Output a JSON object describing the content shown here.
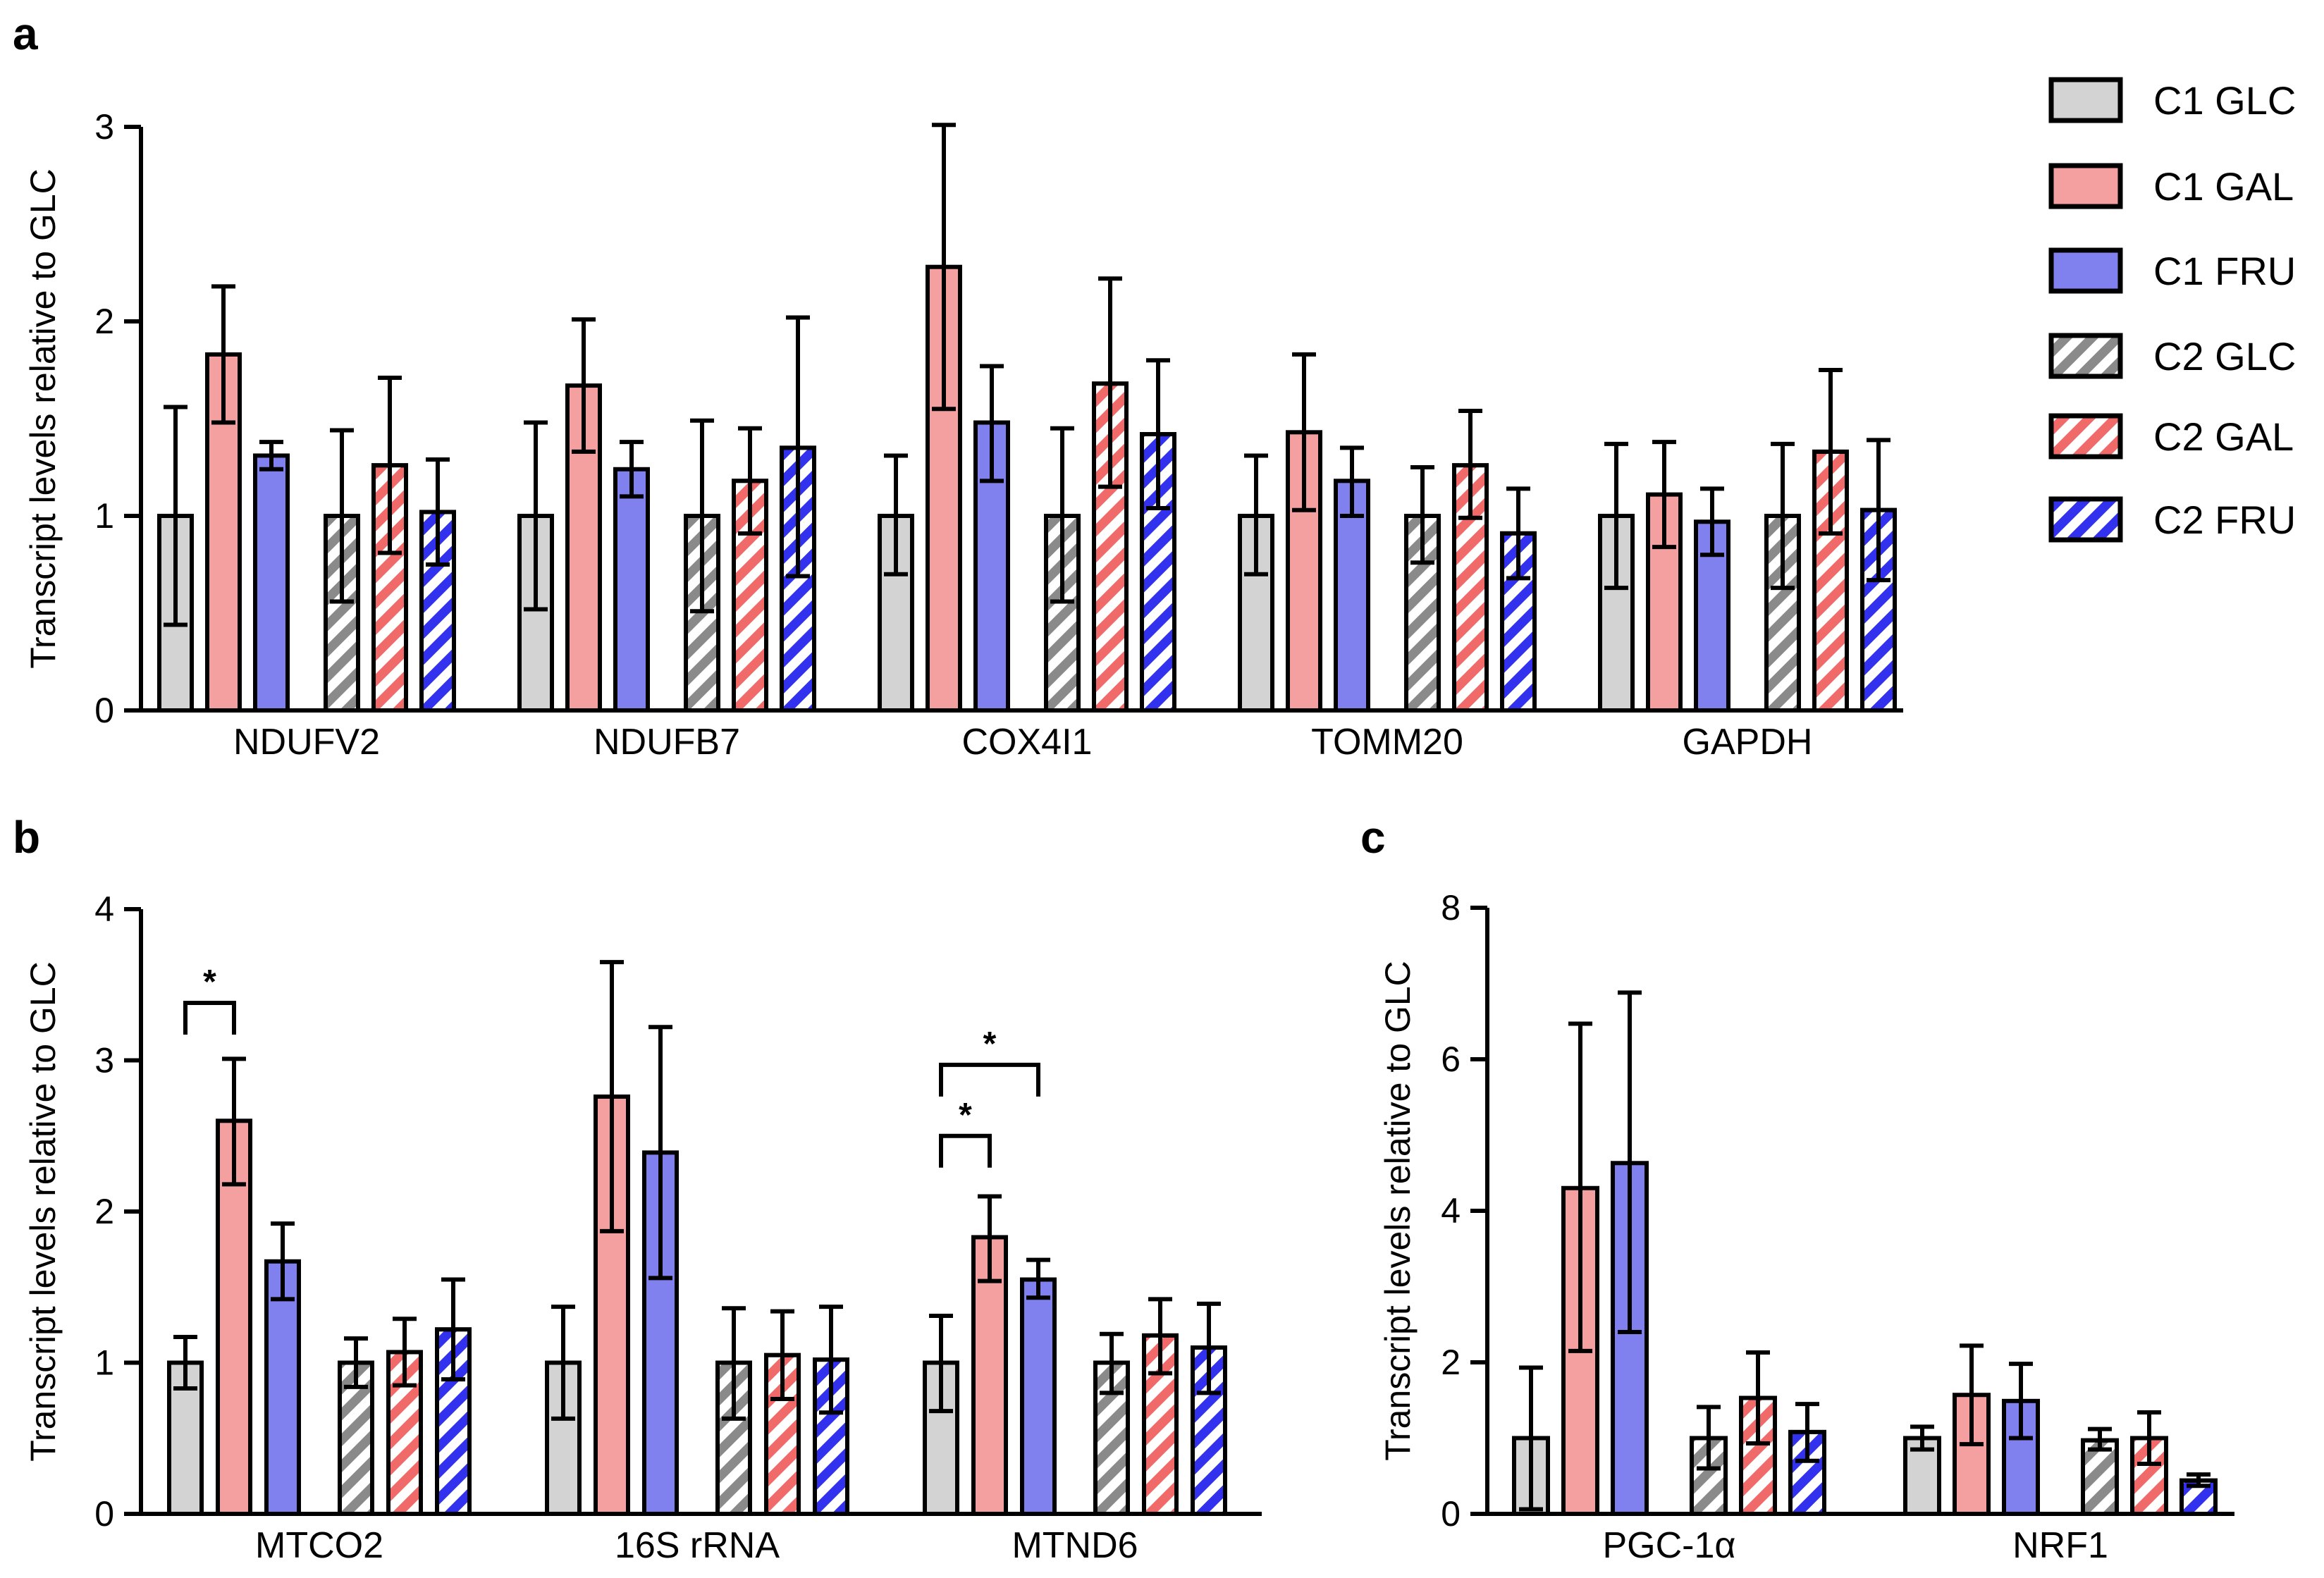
{
  "figure": {
    "panel_letters": [
      "a",
      "b",
      "c"
    ]
  },
  "legend": {
    "entries": [
      {
        "label": "C1 GLC",
        "color": "#d3d3d3",
        "hatched": false
      },
      {
        "label": "C1 GAL",
        "color": "#f4a0a0",
        "hatched": false
      },
      {
        "label": "C1 FRU",
        "color": "#8080ee",
        "hatched": false
      },
      {
        "label": "C2 GLC",
        "color": "#8a8a8a",
        "hatched": true
      },
      {
        "label": "C2 GAL",
        "color": "#f06a6a",
        "hatched": true
      },
      {
        "label": "C2 FRU",
        "color": "#3232ee",
        "hatched": true
      }
    ]
  },
  "chart_data": [
    {
      "panel": "a",
      "type": "bar",
      "ylabel": "Transcript levels relative to GLC",
      "ylim": [
        0,
        3
      ],
      "yticks": [
        0,
        1,
        2,
        3
      ],
      "categories": [
        "NDUFV2",
        "NDUFB7",
        "COX4I1",
        "TOMM20",
        "GAPDH"
      ],
      "series": [
        {
          "name": "C1 GLC",
          "values": [
            1.0,
            1.0,
            1.0,
            1.0,
            1.0
          ],
          "err_low": [
            0.44,
            0.52,
            0.7,
            0.7,
            0.63
          ],
          "err_high": [
            1.56,
            1.48,
            1.31,
            1.31,
            1.37
          ]
        },
        {
          "name": "C1 GAL",
          "values": [
            1.83,
            1.67,
            2.28,
            1.43,
            1.11
          ],
          "err_low": [
            1.48,
            1.33,
            1.55,
            1.03,
            0.84
          ],
          "err_high": [
            2.18,
            2.01,
            3.01,
            1.83,
            1.38
          ]
        },
        {
          "name": "C1 FRU",
          "values": [
            1.31,
            1.24,
            1.48,
            1.18,
            0.97
          ],
          "err_low": [
            1.24,
            1.1,
            1.18,
            1.0,
            0.8
          ],
          "err_high": [
            1.38,
            1.38,
            1.77,
            1.35,
            1.14
          ]
        },
        {
          "name": "C2 GLC",
          "values": [
            1.0,
            1.0,
            1.0,
            1.0,
            1.0
          ],
          "err_low": [
            0.56,
            0.51,
            0.56,
            0.76,
            0.63
          ],
          "err_high": [
            1.44,
            1.49,
            1.45,
            1.25,
            1.37
          ]
        },
        {
          "name": "C2 GAL",
          "values": [
            1.26,
            1.18,
            1.68,
            1.26,
            1.33
          ],
          "err_low": [
            0.81,
            0.91,
            1.15,
            0.99,
            0.91
          ],
          "err_high": [
            1.71,
            1.45,
            2.22,
            1.54,
            1.75
          ]
        },
        {
          "name": "C2 FRU",
          "values": [
            1.02,
            1.35,
            1.42,
            0.91,
            1.03
          ],
          "err_low": [
            0.75,
            0.69,
            1.04,
            0.68,
            0.67
          ],
          "err_high": [
            1.29,
            2.02,
            1.8,
            1.14,
            1.39
          ]
        }
      ],
      "significance": []
    },
    {
      "panel": "b",
      "type": "bar",
      "ylabel": "Transcript levels relative to GLC",
      "ylim": [
        0,
        4
      ],
      "yticks": [
        0,
        1,
        2,
        3,
        4
      ],
      "categories": [
        "MTCO2",
        "16S rRNA",
        "MTND6"
      ],
      "series": [
        {
          "name": "C1 GLC",
          "values": [
            1.0,
            1.0,
            1.0
          ],
          "err_low": [
            0.83,
            0.63,
            0.68
          ],
          "err_high": [
            1.17,
            1.37,
            1.31
          ]
        },
        {
          "name": "C1 GAL",
          "values": [
            2.6,
            2.76,
            1.83
          ],
          "err_low": [
            2.18,
            1.87,
            1.54
          ],
          "err_high": [
            3.01,
            3.65,
            2.1
          ]
        },
        {
          "name": "C1 FRU",
          "values": [
            1.67,
            2.39,
            1.55
          ],
          "err_low": [
            1.42,
            1.56,
            1.43
          ],
          "err_high": [
            1.92,
            3.22,
            1.68
          ]
        },
        {
          "name": "C2 GLC",
          "values": [
            1.0,
            1.0,
            1.0
          ],
          "err_low": [
            0.84,
            0.63,
            0.8
          ],
          "err_high": [
            1.16,
            1.36,
            1.19
          ]
        },
        {
          "name": "C2 GAL",
          "values": [
            1.07,
            1.05,
            1.18
          ],
          "err_low": [
            0.85,
            0.76,
            0.93
          ],
          "err_high": [
            1.29,
            1.34,
            1.42
          ]
        },
        {
          "name": "C2 FRU",
          "values": [
            1.22,
            1.02,
            1.1
          ],
          "err_low": [
            0.89,
            0.67,
            0.8
          ],
          "err_high": [
            1.55,
            1.37,
            1.39
          ]
        }
      ],
      "significance": [
        {
          "category": 0,
          "from_series": 0,
          "to_series": 1,
          "level": 3.38,
          "label": "*"
        },
        {
          "category": 2,
          "from_series": 0,
          "to_series": 1,
          "level": 2.5,
          "label": "*"
        },
        {
          "category": 2,
          "from_series": 0,
          "to_series": 2,
          "level": 2.97,
          "label": "*"
        }
      ]
    },
    {
      "panel": "c",
      "type": "bar",
      "ylabel": "Transcript levels relative to GLC",
      "ylim": [
        0,
        8
      ],
      "yticks": [
        0,
        2,
        4,
        6,
        8
      ],
      "categories": [
        "PGC-1α",
        "NRF1"
      ],
      "series": [
        {
          "name": "C1 GLC",
          "values": [
            1.0,
            1.0
          ],
          "err_low": [
            0.06,
            0.85
          ],
          "err_high": [
            1.93,
            1.15
          ]
        },
        {
          "name": "C1 GAL",
          "values": [
            4.3,
            1.57
          ],
          "err_low": [
            2.15,
            0.92
          ],
          "err_high": [
            6.47,
            2.22
          ]
        },
        {
          "name": "C1 FRU",
          "values": [
            4.63,
            1.49
          ],
          "err_low": [
            2.4,
            1.0
          ],
          "err_high": [
            6.88,
            1.98
          ]
        },
        {
          "name": "C2 GLC",
          "values": [
            1.0,
            0.97
          ],
          "err_low": [
            0.6,
            0.85
          ],
          "err_high": [
            1.41,
            1.12
          ]
        },
        {
          "name": "C2 GAL",
          "values": [
            1.53,
            1.0
          ],
          "err_low": [
            0.93,
            0.66
          ],
          "err_high": [
            2.13,
            1.34
          ]
        },
        {
          "name": "C2 FRU",
          "values": [
            1.08,
            0.44
          ],
          "err_low": [
            0.7,
            0.37
          ],
          "err_high": [
            1.45,
            0.52
          ]
        }
      ],
      "significance": []
    }
  ]
}
